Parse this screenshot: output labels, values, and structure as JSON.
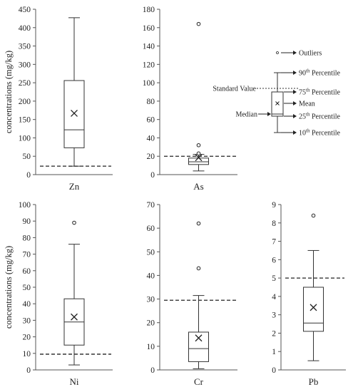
{
  "chart_data": [
    {
      "type": "box",
      "category": "Zn",
      "ylabel": "concentrations (mg/kg)",
      "ylim": [
        0,
        450
      ],
      "yticks": [
        0,
        50,
        100,
        150,
        200,
        250,
        300,
        350,
        400,
        450
      ],
      "stats": {
        "p10": 23,
        "p25": 73,
        "median": 122,
        "p75": 256,
        "p90": 427,
        "mean": 167
      },
      "outliers": [],
      "standard_value": 23
    },
    {
      "type": "box",
      "category": "As",
      "ylabel": "",
      "ylim": [
        0,
        180
      ],
      "yticks": [
        0,
        20,
        40,
        60,
        80,
        100,
        120,
        140,
        160,
        180
      ],
      "stats": {
        "p10": 4,
        "p25": 11,
        "median": 14,
        "p75": 18,
        "p90": 22,
        "mean": 18.5
      },
      "outliers": [
        23,
        32,
        164
      ],
      "standard_value": 20
    },
    {
      "type": "box",
      "category": "Ni",
      "ylabel": "concentrations (mg/kg)",
      "ylim": [
        0,
        100
      ],
      "yticks": [
        0,
        10,
        20,
        30,
        40,
        50,
        60,
        70,
        80,
        90,
        100
      ],
      "stats": {
        "p10": 3,
        "p25": 15,
        "median": 29,
        "p75": 43,
        "p90": 76,
        "mean": 32
      },
      "outliers": [
        89
      ],
      "standard_value": 9.5
    },
    {
      "type": "box",
      "category": "Cr",
      "ylabel": "",
      "ylim": [
        0,
        70
      ],
      "yticks": [
        0,
        10,
        20,
        30,
        40,
        50,
        60,
        70
      ],
      "stats": {
        "p10": 0.5,
        "p25": 3.5,
        "median": 9,
        "p75": 16,
        "p90": 31.5,
        "mean": 13.5
      },
      "outliers": [
        43,
        62
      ],
      "standard_value": 29.5
    },
    {
      "type": "box",
      "category": "Pb",
      "ylabel": "",
      "ylim": [
        0,
        9
      ],
      "yticks": [
        0,
        1,
        2,
        3,
        4,
        5,
        6,
        7,
        8,
        9
      ],
      "stats": {
        "p10": 0.5,
        "p25": 2.1,
        "median": 2.55,
        "p75": 4.5,
        "p90": 6.5,
        "mean": 3.4
      },
      "outliers": [
        8.4
      ],
      "standard_value": 5
    }
  ],
  "legend": {
    "outliers": "Outliers",
    "p90": "90th Percentile",
    "standard_value": "Standard Value",
    "p75": "75th Percentile",
    "mean": "Mean",
    "median": "Median",
    "p25": "25th Percentile",
    "p10": "10th Percentile"
  }
}
